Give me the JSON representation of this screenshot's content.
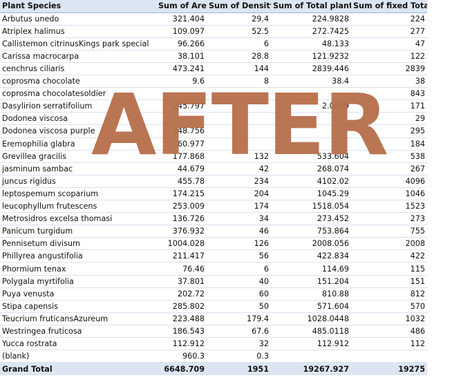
{
  "headers": [
    "Plant Species",
    "Sum of Area",
    "Sum of Density",
    "Sum of Total plants",
    "Sum of fixed Total"
  ],
  "rows": [
    [
      "Arbutus unedo",
      "321.404",
      "29.4",
      "224.9828",
      "224"
    ],
    [
      "Atriplex halimus",
      "109.097",
      "52.5",
      "272.7425",
      "277"
    ],
    [
      "Callistemon citrinusKings park special",
      "96.266",
      "6",
      "48.133",
      "47"
    ],
    [
      "Carissa macrocarpa",
      "38.101",
      "28.8",
      "121.9232",
      "122"
    ],
    [
      "cenchrus ciliaris",
      "473.241",
      "144",
      "2839.446",
      "2839"
    ],
    [
      "coprosma chocolate",
      "9.6",
      "8",
      "38.4",
      "38"
    ],
    [
      "coprosma chocolatesoldier",
      "",
      "",
      "",
      "843"
    ],
    [
      "Dasylirion serratifolium",
      "245.797",
      "",
      "2.0579",
      "171"
    ],
    [
      "Dodonea viscosa",
      "",
      "",
      "",
      "29"
    ],
    [
      "Dodonea viscosa purple",
      "148.756",
      "",
      "",
      "295"
    ],
    [
      "Eremophilia glabra",
      "60.977",
      "",
      "",
      "184"
    ],
    [
      "Grevillea gracilis",
      "177.868",
      "132",
      "533.604",
      "538"
    ],
    [
      "jasminum sambac",
      "44.679",
      "42",
      "268.074",
      "267"
    ],
    [
      "juncus rigidus",
      "455.78",
      "234",
      "4102.02",
      "4096"
    ],
    [
      "leptospemum scoparium",
      "174.215",
      "204",
      "1045.29",
      "1046"
    ],
    [
      "leucophyllum frutescens",
      "253.009",
      "174",
      "1518.054",
      "1523"
    ],
    [
      "Metrosidros excelsa thomasi",
      "136.726",
      "34",
      "273.452",
      "273"
    ],
    [
      "Panicum turgidum",
      "376.932",
      "46",
      "753.864",
      "755"
    ],
    [
      "Pennisetum divisum",
      "1004.028",
      "126",
      "2008.056",
      "2008"
    ],
    [
      "Phillyrea angustifolia",
      "211.417",
      "56",
      "422.834",
      "422"
    ],
    [
      "Phormium tenax",
      "76.46",
      "6",
      "114.69",
      "115"
    ],
    [
      "Polygala myrtifolia",
      "37.801",
      "40",
      "151.204",
      "151"
    ],
    [
      "Puya venusta",
      "202.72",
      "60",
      "810.88",
      "812"
    ],
    [
      "Stipa capensis",
      "285.802",
      "50",
      "571.604",
      "570"
    ],
    [
      "Teucrium fruticansAzureum",
      "223.488",
      "179.4",
      "1028.0448",
      "1032"
    ],
    [
      "Westringea fruticosa",
      "186.543",
      "67.6",
      "485.0118",
      "486"
    ],
    [
      "Yucca rostrata",
      "112.912",
      "32",
      "112.912",
      "112"
    ],
    [
      "(blank)",
      "960.3",
      "0.3",
      "",
      ""
    ]
  ],
  "total": [
    "Grand Total",
    "6648.709",
    "1951",
    "19267.927",
    "19275"
  ],
  "watermark": "AFTER",
  "colors": {
    "header_bg": "#dce6f2",
    "watermark": "#b76e4a"
  }
}
